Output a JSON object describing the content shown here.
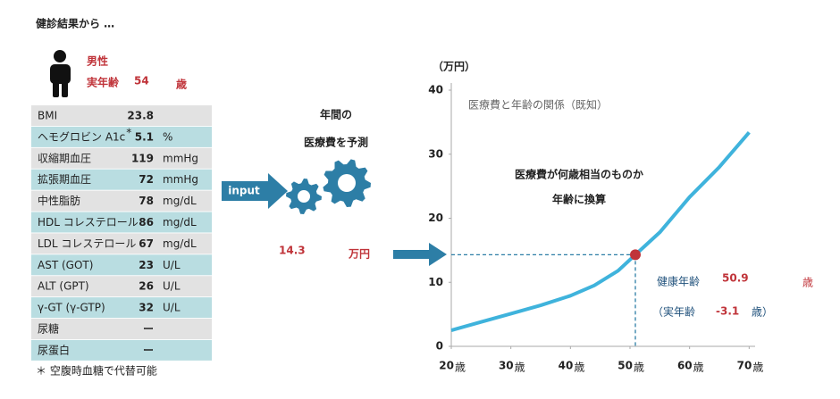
{
  "header": {
    "title": "健診結果から …",
    "sex": "男性",
    "age_label": "実年齢",
    "age": 54,
    "age_unit": "歳"
  },
  "table": {
    "rows": [
      {
        "item": "BMI",
        "value": 23.8
      },
      {
        "item": "ヘモグロビン A1c",
        "mark": "*",
        "value": 5.1,
        "unit": "%"
      },
      {
        "item": "収縮期血圧",
        "value": 119,
        "unit": "mmHg"
      },
      {
        "item": "拡張期血圧",
        "value": 72,
        "unit": "mmHg"
      },
      {
        "item": "中性脂肪",
        "value": 78,
        "unit": "mg/dL"
      },
      {
        "item": "HDL コレステロール",
        "value": 86,
        "unit": "mg/dL"
      },
      {
        "item": "LDL コレステロール",
        "value": 67,
        "unit": "mg/dL"
      },
      {
        "item": "AST (GOT)",
        "value": 23,
        "unit": "U/L"
      },
      {
        "item": "ALT (GPT)",
        "value": 26,
        "unit": "U/L"
      },
      {
        "item": "γ-GT (γ-GTP)",
        "value": 32,
        "unit": "U/L"
      },
      {
        "item": "尿糖",
        "value": "ー"
      },
      {
        "item": "尿蛋白",
        "value": "ー"
      }
    ],
    "note": "＊ 空腹時血糖で代替可能"
  },
  "prediction": {
    "title_lines": [
      "年間の",
      "医療費を予測"
    ],
    "input_label": "input",
    "cost": 14.3,
    "cost_unit": "万円"
  },
  "chart_data": {
    "type": "line",
    "title": "医療費と年齢の関係（既知）",
    "y_axis_label": "（万円）",
    "x_tick_unit": "歳",
    "x": [
      20,
      25,
      30,
      35,
      40,
      44,
      48,
      50.9,
      55,
      60,
      65,
      70
    ],
    "series": [
      {
        "color": "#3fb3dc",
        "values": [
          2.5,
          3.8,
          5.1,
          6.4,
          7.9,
          9.5,
          11.8,
          14.3,
          17.8,
          23.3,
          28.0,
          33.4
        ]
      }
    ],
    "xlim": [
      20,
      71
    ],
    "xticks": [
      20,
      30,
      40,
      50,
      60,
      70
    ],
    "ylim": [
      0,
      40
    ],
    "yticks": [
      0,
      10,
      20,
      30,
      40
    ],
    "grid": false,
    "annotation_lines": [
      "医療費が何歳相当のものか",
      "年齢に換算"
    ],
    "highlight": {
      "x": 50.9,
      "y": 14.3,
      "color": "#c0343a",
      "label": "健康年齢",
      "unit": "歳",
      "note_open": "（実年齢",
      "difference": -3.1,
      "note_close": "歳）"
    }
  }
}
